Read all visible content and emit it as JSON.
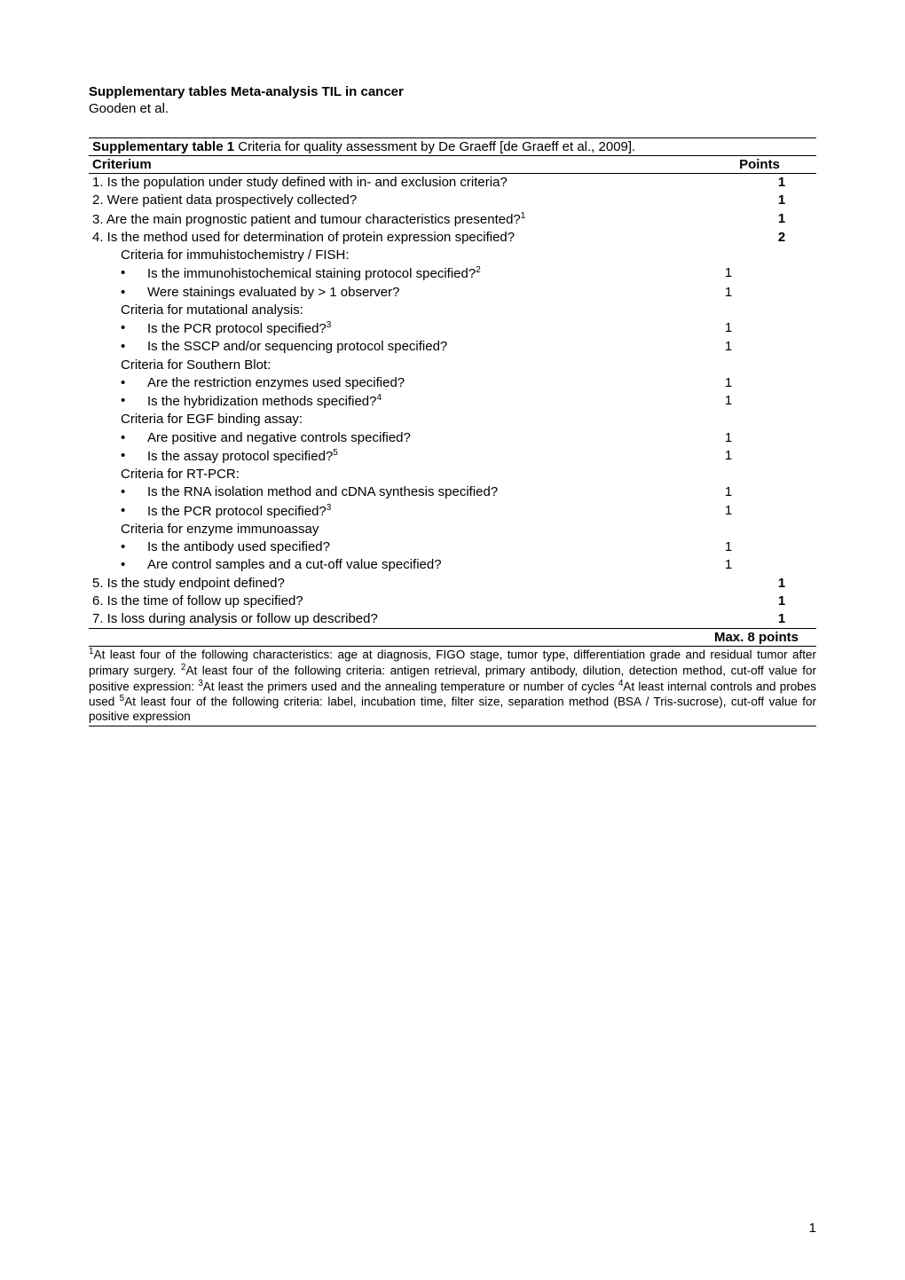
{
  "title": "Supplementary tables Meta-analysis TIL in cancer",
  "authors": "Gooden et al.",
  "table": {
    "caption_bold": "Supplementary table 1",
    "caption_rest": " Criteria for quality assessment by De Graeff [de Graeff et al., 2009].",
    "header_left": "Criterium",
    "header_right": "Points",
    "rows": [
      {
        "type": "main",
        "text": "1. Is the population under study defined with in- and exclusion criteria?",
        "points": "1"
      },
      {
        "type": "main",
        "text": "2. Were patient data prospectively collected?",
        "points": "1"
      },
      {
        "type": "main_sup",
        "text": "3. Are the main prognostic patient and tumour characteristics presented?",
        "sup": "1",
        "points": "1"
      },
      {
        "type": "main",
        "text": "4. Is the method used for determination of protein expression specified?",
        "points": "2"
      },
      {
        "type": "sub",
        "text": "Criteria for immuhistochemistry / FISH:"
      },
      {
        "type": "bullet_sup",
        "text": "Is the immunohistochemical staining protocol  specified?",
        "sup": "2",
        "subpt": "1"
      },
      {
        "type": "bullet",
        "text": "Were stainings evaluated by > 1 observer?",
        "subpt": "1"
      },
      {
        "type": "sub",
        "text": "Criteria for mutational analysis:"
      },
      {
        "type": "bullet_sup",
        "text": "Is the PCR protocol specified?",
        "sup": "3",
        "subpt": "1"
      },
      {
        "type": "bullet",
        "text": "Is the SSCP and/or sequencing protocol specified?",
        "subpt": "1"
      },
      {
        "type": "sub",
        "text": "Criteria for Southern Blot:"
      },
      {
        "type": "bullet",
        "text": "Are the restriction enzymes used specified?",
        "subpt": "1"
      },
      {
        "type": "bullet_sup",
        "text": "Is the hybridization methods specified?",
        "sup": "4",
        "subpt": "1"
      },
      {
        "type": "sub",
        "text": "Criteria for EGF binding assay:"
      },
      {
        "type": "bullet",
        "text": "Are positive and negative controls specified?",
        "subpt": "1"
      },
      {
        "type": "bullet_sup",
        "text": "Is the assay protocol specified?",
        "sup": "5",
        "subpt": "1"
      },
      {
        "type": "sub",
        "text": "Criteria for RT-PCR:"
      },
      {
        "type": "bullet",
        "text": "Is the RNA isolation method and cDNA synthesis specified?",
        "subpt": "1"
      },
      {
        "type": "bullet_sup",
        "text": "Is the PCR protocol specified?",
        "sup": "3",
        "subpt": "1"
      },
      {
        "type": "sub",
        "text": "Criteria for enzyme immunoassay"
      },
      {
        "type": "bullet",
        "text": "Is the antibody used specified?",
        "subpt": "1"
      },
      {
        "type": "bullet",
        "text": "Are control samples and a cut-off value specified?",
        "subpt": "1"
      },
      {
        "type": "main",
        "text": "5. Is the study endpoint defined?",
        "points": "1"
      },
      {
        "type": "main",
        "text": "6. Is the time of follow up specified?",
        "points": "1"
      },
      {
        "type": "main",
        "text": "7. Is loss during analysis or follow up described?",
        "points": "1"
      }
    ],
    "max": "Max. 8 points"
  },
  "footnote": {
    "f1_sup": "1",
    "f1": "At least four of the following characteristics: age at diagnosis, FIGO stage, tumor type, differentiation grade and residual tumor after primary surgery. ",
    "f2_sup": "2",
    "f2": "At least four of the following criteria: antigen retrieval, primary antibody, dilution, detection method, cut-off value for positive expression: ",
    "f3_sup": "3",
    "f3": "At least the primers used and the annealing temperature or number of cycles ",
    "f4_sup": "4",
    "f4": "At least internal controls and probes used ",
    "f5_sup": "5",
    "f5": "At least four of the following criteria: label, incubation time, filter size, separation method (BSA / Tris-sucrose), cut-off value for positive expression"
  },
  "page_number": "1"
}
